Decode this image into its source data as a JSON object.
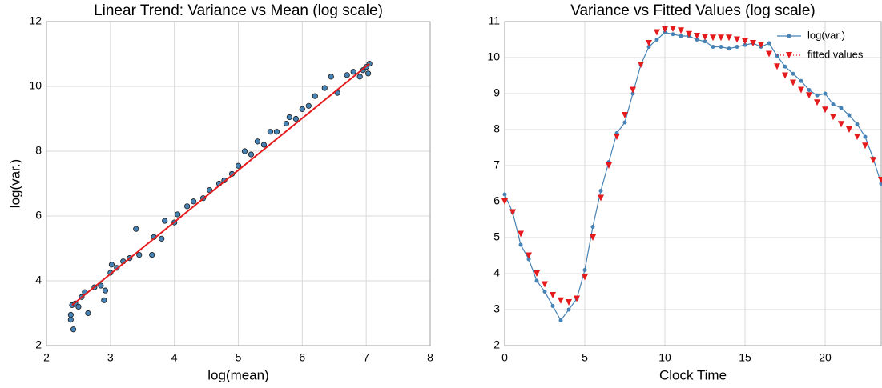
{
  "chart_data": [
    {
      "type": "scatter",
      "title": "Linear Trend: Variance vs Mean (log scale)",
      "xlabel": "log(mean)",
      "ylabel": "log(var.)",
      "xlim": [
        2,
        8
      ],
      "xticks": [
        2,
        3,
        4,
        5,
        6,
        7,
        8
      ],
      "ylim": [
        2,
        12
      ],
      "yticks": [
        2,
        4,
        6,
        8,
        10,
        12
      ],
      "grid": true,
      "color": "#4682b4",
      "x": [
        2.38,
        2.38,
        2.4,
        2.42,
        2.45,
        2.5,
        2.55,
        2.6,
        2.65,
        2.75,
        2.85,
        2.9,
        2.92,
        3.0,
        3.02,
        3.1,
        3.2,
        3.3,
        3.4,
        3.45,
        3.65,
        3.68,
        3.8,
        3.85,
        4.0,
        4.05,
        4.2,
        4.3,
        4.45,
        4.55,
        4.7,
        4.78,
        4.9,
        5.0,
        5.1,
        5.2,
        5.3,
        5.4,
        5.5,
        5.6,
        5.75,
        5.8,
        5.9,
        6.0,
        6.1,
        6.2,
        6.35,
        6.45,
        6.55,
        6.7,
        6.8,
        6.9,
        6.95,
        7.0,
        7.03,
        7.05
      ],
      "values": [
        2.8,
        2.95,
        3.25,
        2.5,
        3.3,
        3.2,
        3.5,
        3.65,
        3.0,
        3.8,
        3.85,
        3.4,
        3.7,
        4.25,
        4.5,
        4.4,
        4.6,
        4.7,
        5.6,
        4.8,
        4.8,
        5.35,
        5.3,
        5.85,
        5.8,
        6.05,
        6.3,
        6.45,
        6.55,
        6.8,
        7.0,
        7.1,
        7.3,
        7.55,
        8.0,
        7.9,
        8.3,
        8.2,
        8.6,
        8.6,
        8.85,
        9.05,
        9.0,
        9.3,
        9.4,
        9.7,
        9.95,
        10.3,
        9.8,
        10.35,
        10.45,
        10.3,
        10.5,
        10.6,
        10.4,
        10.7
      ],
      "fit": {
        "x": [
          2.4,
          7.05
        ],
        "values": [
          3.25,
          10.7
        ],
        "color": "#e41a1c"
      }
    },
    {
      "type": "line",
      "title": "Variance vs Fitted Values (log scale)",
      "xlabel": "Clock Time",
      "xlim": [
        0,
        23.5
      ],
      "xticks": [
        0,
        5,
        10,
        15,
        20
      ],
      "ylim": [
        2,
        11
      ],
      "yticks": [
        2,
        3,
        4,
        5,
        6,
        7,
        8,
        9,
        10,
        11
      ],
      "grid": true,
      "legend": "upper right",
      "x": [
        0,
        0.5,
        1,
        1.5,
        2,
        2.5,
        3,
        3.5,
        4,
        4.5,
        5,
        5.5,
        6,
        6.5,
        7,
        7.5,
        8,
        8.5,
        9,
        9.5,
        10,
        10.5,
        11,
        11.5,
        12,
        12.5,
        13,
        13.5,
        14,
        14.5,
        15,
        15.5,
        16,
        16.5,
        17,
        17.5,
        18,
        18.5,
        19,
        19.5,
        20,
        20.5,
        21,
        21.5,
        22,
        22.5,
        23,
        23.5
      ],
      "series": [
        {
          "name": "log(var.)",
          "color": "#4682b4",
          "marker": "circle",
          "line": true,
          "values": [
            6.2,
            5.7,
            4.8,
            4.4,
            3.8,
            3.5,
            3.1,
            2.7,
            3.0,
            3.3,
            4.1,
            5.3,
            6.3,
            7.1,
            7.9,
            8.2,
            9.0,
            9.8,
            10.3,
            10.5,
            10.7,
            10.65,
            10.6,
            10.6,
            10.5,
            10.45,
            10.3,
            10.3,
            10.25,
            10.3,
            10.35,
            10.4,
            10.3,
            10.4,
            10.05,
            9.75,
            9.55,
            9.35,
            9.1,
            8.95,
            9.0,
            8.7,
            8.6,
            8.4,
            8.15,
            7.8,
            7.2,
            6.5
          ]
        },
        {
          "name": "fitted values",
          "color": "#e41a1c",
          "marker": "triangle",
          "line": false,
          "values": [
            6.0,
            5.7,
            5.1,
            4.5,
            4.0,
            3.7,
            3.4,
            3.25,
            3.2,
            3.3,
            3.9,
            5.0,
            6.1,
            7.0,
            7.8,
            8.4,
            9.1,
            9.8,
            10.4,
            10.7,
            10.78,
            10.8,
            10.75,
            10.65,
            10.6,
            10.57,
            10.55,
            10.55,
            10.55,
            10.5,
            10.45,
            10.4,
            10.35,
            10.1,
            9.75,
            9.5,
            9.3,
            9.1,
            8.95,
            8.75,
            8.55,
            8.35,
            8.15,
            8.0,
            7.8,
            7.55,
            7.15,
            6.6
          ]
        }
      ]
    }
  ]
}
